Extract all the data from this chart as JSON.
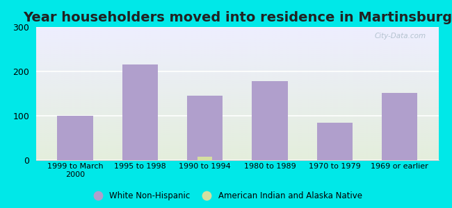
{
  "title": "Year householders moved into residence in Martinsburg",
  "categories": [
    "1999 to March\n2000",
    "1995 to 1998",
    "1990 to 1994",
    "1980 to 1989",
    "1970 to 1979",
    "1969 or earlier"
  ],
  "white_non_hispanic": [
    100,
    215,
    145,
    178,
    85,
    152
  ],
  "american_indian": [
    0,
    0,
    8,
    0,
    0,
    0
  ],
  "bar_color_white": "#b09fcc",
  "bar_color_indian": "#d4dfa0",
  "background_outer": "#00e8e8",
  "background_inner_top": "#eeeeff",
  "background_inner_bottom": "#e4eedc",
  "ylim": [
    0,
    300
  ],
  "yticks": [
    0,
    100,
    200,
    300
  ],
  "bar_width": 0.55,
  "title_fontsize": 14,
  "watermark": "City-Data.com",
  "legend_labels": [
    "White Non-Hispanic",
    "American Indian and Alaska Native"
  ],
  "grid_color": "#ffffff",
  "spine_color": "#cccccc"
}
